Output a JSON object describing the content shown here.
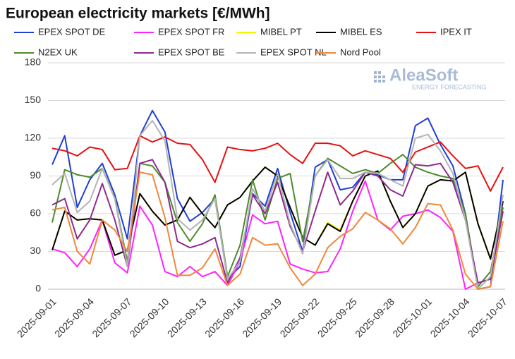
{
  "chart_data": {
    "type": "line",
    "title": "European electricity markets [€/MWh]",
    "watermark": "AleaSoft",
    "watermark_subtitle": "ENERGY FORECASTING",
    "x": [
      "2025-09-01",
      "2025-09-02",
      "2025-09-03",
      "2025-09-04",
      "2025-09-05",
      "2025-09-06",
      "2025-09-07",
      "2025-09-08",
      "2025-09-09",
      "2025-09-10",
      "2025-09-11",
      "2025-09-12",
      "2025-09-13",
      "2025-09-14",
      "2025-09-15",
      "2025-09-16",
      "2025-09-17",
      "2025-09-18",
      "2025-09-19",
      "2025-09-20",
      "2025-09-21",
      "2025-09-22",
      "2025-09-23",
      "2025-09-24",
      "2025-09-25",
      "2025-09-26",
      "2025-09-27",
      "2025-09-28",
      "2025-09-29",
      "2025-09-30",
      "2025-10-01",
      "2025-10-02",
      "2025-10-03",
      "2025-10-04",
      "2025-10-05",
      "2025-10-06",
      "2025-10-07"
    ],
    "xtick_every": 3,
    "ylim": [
      0,
      180
    ],
    "yticks": [
      0,
      30,
      60,
      90,
      120,
      150,
      180
    ],
    "grid": true,
    "series": [
      {
        "name": "EPEX SPOT DE",
        "color": "#1f3fd4",
        "values": [
          99,
          122,
          65,
          87,
          100,
          75,
          40,
          122,
          142,
          125,
          72,
          54,
          61,
          72,
          8,
          18,
          76,
          66,
          96,
          61,
          30,
          97,
          103,
          79,
          81,
          93,
          91,
          87,
          87,
          130,
          136,
          115,
          98,
          60,
          0,
          2,
          87
        ]
      },
      {
        "name": "EPEX SPOT FR",
        "color": "#ff22ff",
        "values": [
          32,
          29,
          18,
          32,
          55,
          21,
          13,
          66,
          51,
          14,
          10,
          18,
          10,
          14,
          3,
          22,
          59,
          52,
          54,
          20,
          16,
          13,
          14,
          32,
          62,
          86,
          55,
          47,
          58,
          60,
          63,
          57,
          46,
          0,
          5,
          8,
          70
        ]
      },
      {
        "name": "MIBEL PT",
        "color": "#f5f500",
        "values": [
          31,
          62,
          55,
          56,
          55,
          27,
          31,
          76,
          62,
          51,
          55,
          73,
          60,
          49,
          67,
          73,
          86,
          97,
          90,
          65,
          41,
          35,
          53,
          47,
          70,
          90,
          94,
          70,
          49,
          60,
          82,
          87,
          86,
          93,
          52,
          24,
          70
        ]
      },
      {
        "name": "MIBEL ES",
        "color": "#000000",
        "values": [
          31,
          62,
          55,
          56,
          55,
          27,
          31,
          76,
          62,
          51,
          55,
          73,
          60,
          49,
          67,
          73,
          86,
          97,
          90,
          65,
          41,
          35,
          52,
          46,
          70,
          90,
          94,
          70,
          49,
          60,
          82,
          87,
          86,
          93,
          52,
          24,
          70
        ]
      },
      {
        "name": "IPEX IT",
        "color": "#e81010",
        "values": [
          112,
          110,
          106,
          113,
          111,
          95,
          96,
          122,
          117,
          121,
          116,
          115,
          103,
          85,
          113,
          111,
          110,
          112,
          116,
          107,
          100,
          116,
          116,
          114,
          106,
          110,
          107,
          104,
          93,
          109,
          113,
          117,
          106,
          96,
          98,
          78,
          97
        ]
      },
      {
        "name": "N2EX UK",
        "color": "#4e8a2e",
        "values": [
          53,
          95,
          91,
          89,
          96,
          72,
          22,
          100,
          98,
          85,
          53,
          38,
          52,
          75,
          10,
          35,
          87,
          55,
          88,
          92,
          38,
          90,
          104,
          98,
          92,
          95,
          92,
          100,
          107,
          97,
          93,
          90,
          88,
          60,
          2,
          14,
          65
        ]
      },
      {
        "name": "EPEX SPOT BE",
        "color": "#8e2a8e",
        "values": [
          67,
          72,
          40,
          55,
          84,
          55,
          18,
          100,
          103,
          85,
          38,
          33,
          36,
          41,
          5,
          25,
          75,
          60,
          85,
          50,
          30,
          62,
          93,
          67,
          78,
          93,
          90,
          79,
          74,
          99,
          98,
          100,
          85,
          55,
          5,
          8,
          62
        ]
      },
      {
        "name": "EPEX SPOT NL",
        "color": "#b4b4b4",
        "values": [
          83,
          92,
          61,
          70,
          96,
          72,
          18,
          122,
          134,
          118,
          56,
          47,
          55,
          72,
          8,
          22,
          80,
          62,
          92,
          52,
          28,
          90,
          103,
          88,
          88,
          93,
          92,
          87,
          82,
          120,
          123,
          110,
          92,
          55,
          0,
          10,
          75
        ]
      },
      {
        "name": "Nord Pool",
        "color": "#f0883a",
        "values": [
          63,
          65,
          30,
          20,
          55,
          47,
          30,
          93,
          91,
          57,
          11,
          11,
          17,
          32,
          3,
          12,
          41,
          35,
          36,
          17,
          3,
          12,
          33,
          42,
          48,
          61,
          55,
          48,
          36,
          49,
          68,
          67,
          47,
          12,
          0,
          2,
          54
        ]
      }
    ]
  }
}
